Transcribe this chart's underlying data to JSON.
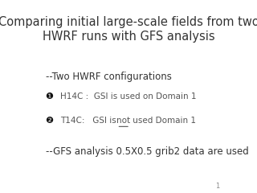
{
  "title_line1": "Comparing initial large-scale fields from two",
  "title_line2": "HWRF runs with GFS analysis",
  "background_color": "#ffffff",
  "text_color": "#333333",
  "title_fontsize": 10.5,
  "body_fontsize": 8.5,
  "bullet_fontsize": 7.5,
  "section1": "--Two HWRF configurations",
  "bullet1_label": "H14C :  GSI is used on Domain 1",
  "bullet2_label_pre": "T14C:   GSI is ",
  "bullet2_label_not": "not",
  "bullet2_label_post": " used Domain 1",
  "section2": "--GFS analysis 0.5X0.5 grib2 data are used",
  "page_number": "1",
  "bullet_color": "#555555",
  "bullet_icon_color": "#111111"
}
